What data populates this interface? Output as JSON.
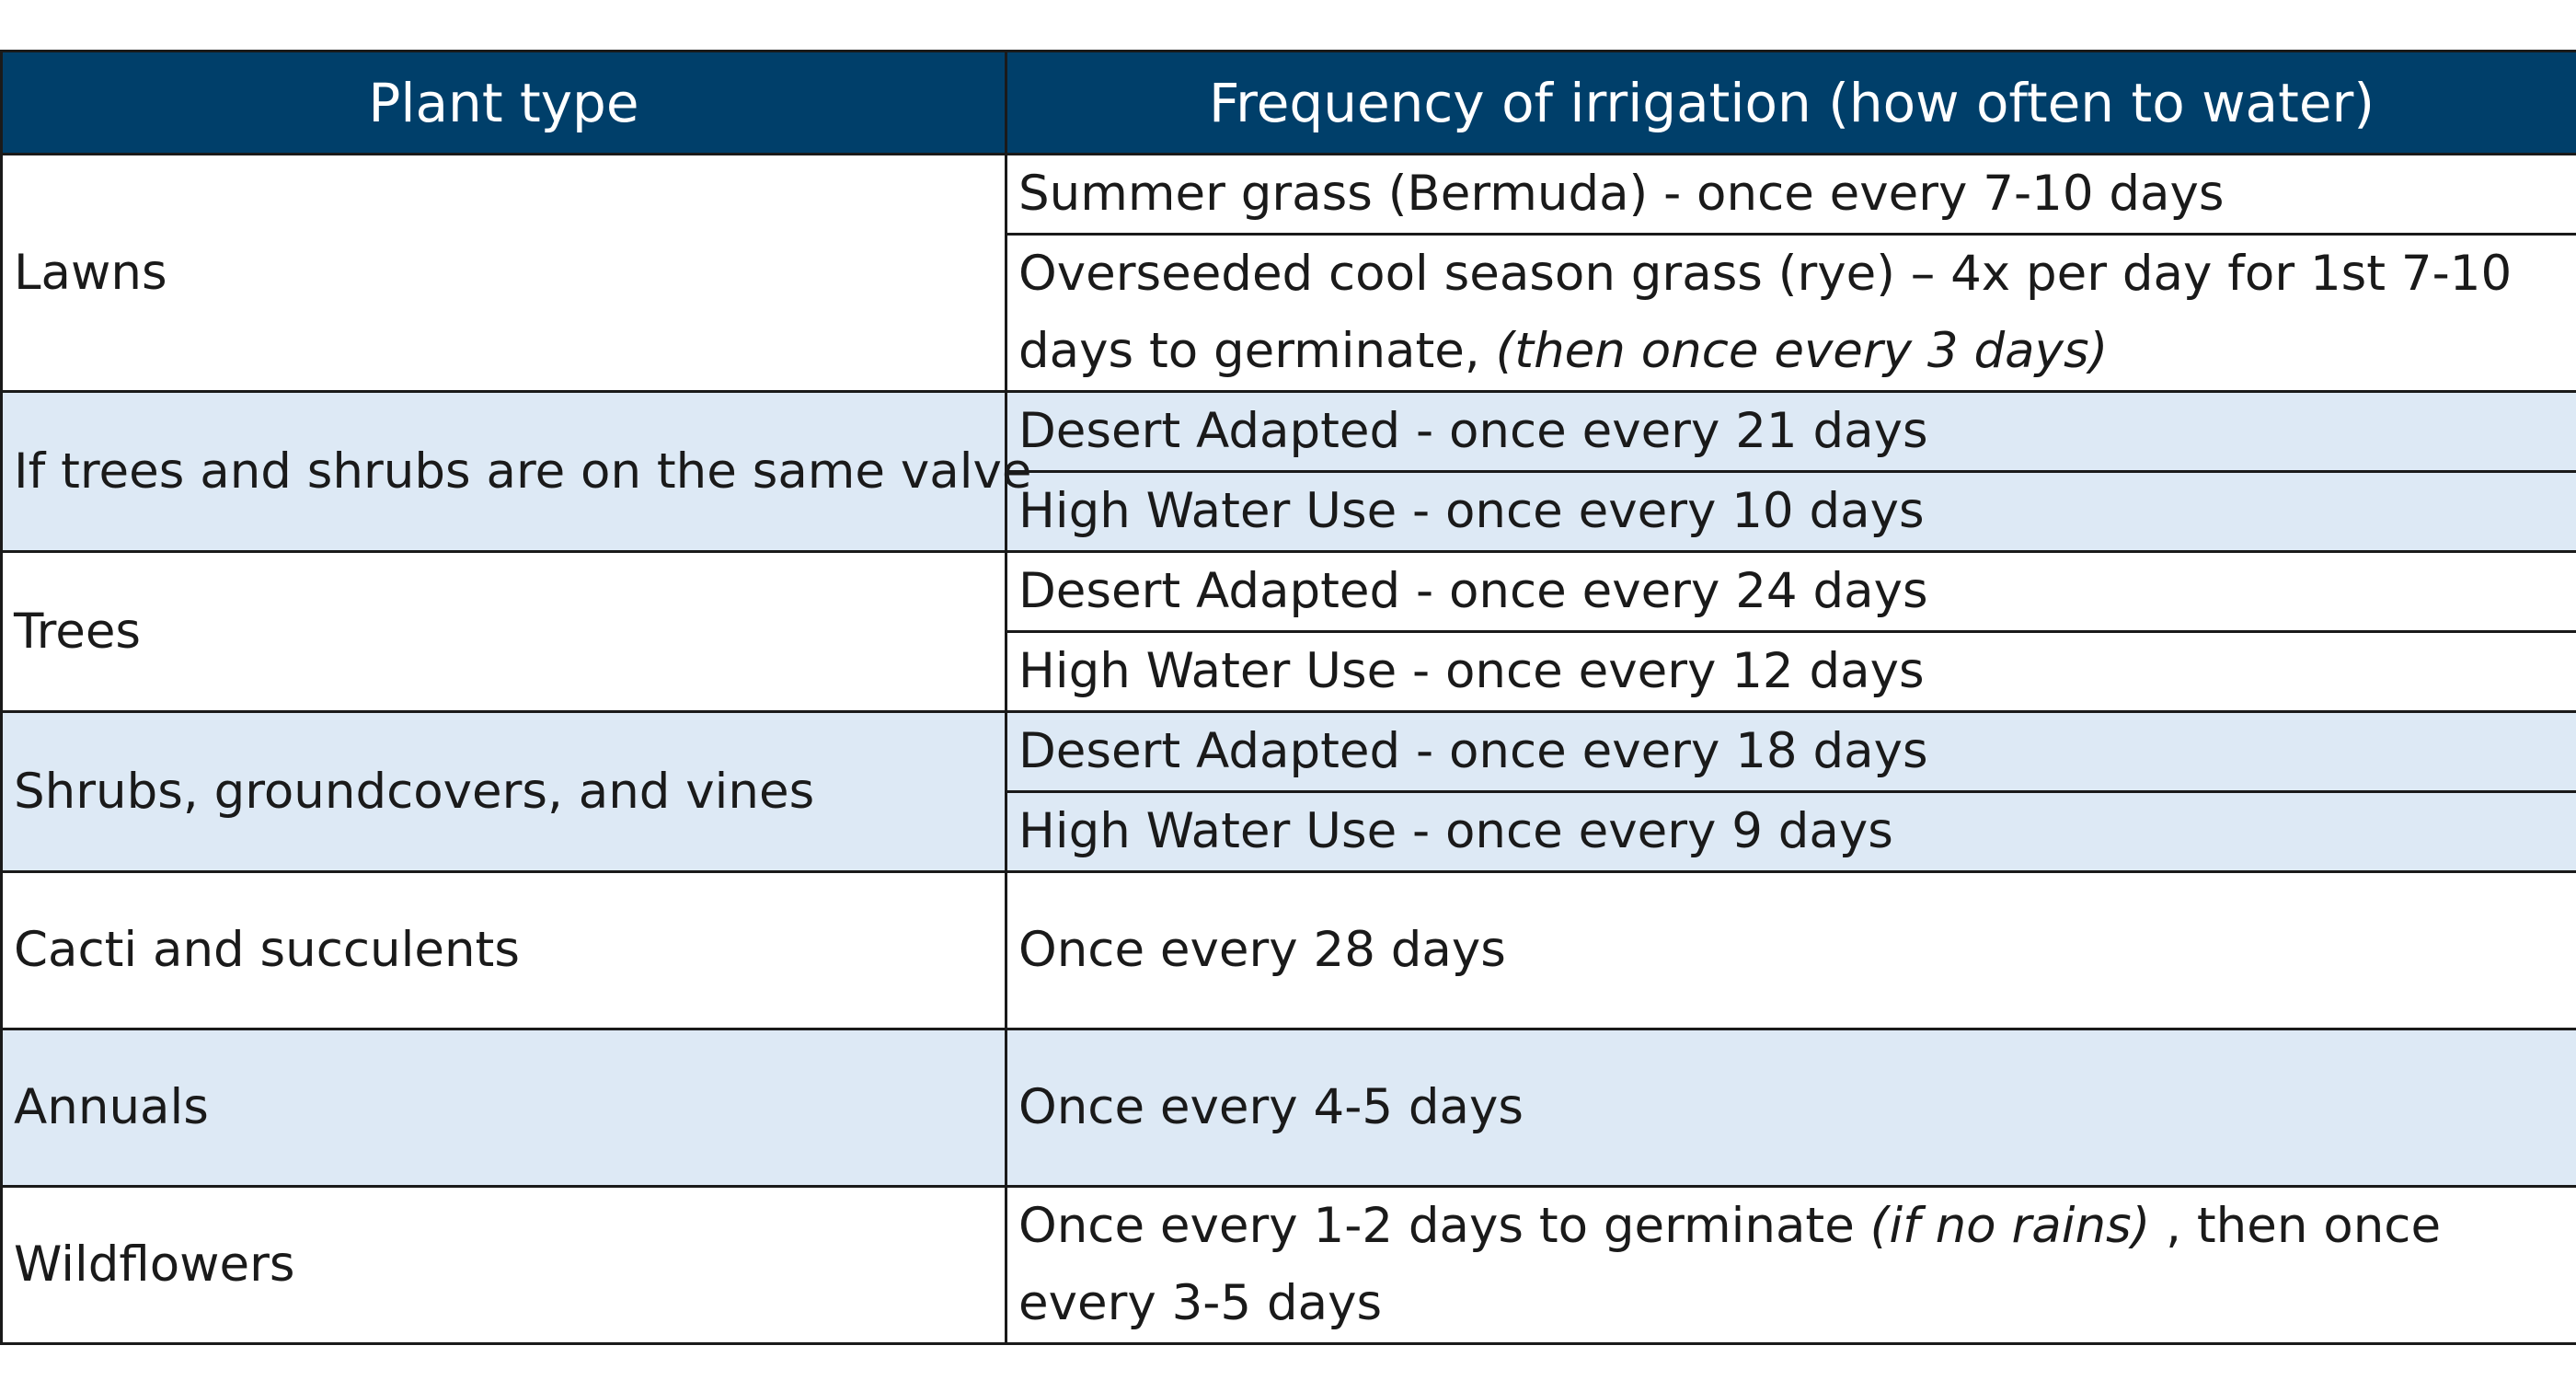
{
  "table": {
    "headers": {
      "plant_type": "Plant type",
      "frequency": "Frequency of irrigation (how often to water)"
    },
    "colors": {
      "header_bg": "#003f6a",
      "header_text": "#ffffff",
      "shaded_row": "#dde9f5",
      "border": "#1a1a1a"
    },
    "rows": {
      "lawns": {
        "plant": "Lawns",
        "f1": "Summer grass (Bermuda) - once every 7-10 days",
        "f2_main": "Overseeded cool season grass (rye) – 4x per day for 1st 7-10 days to germinate, ",
        "f2_italic": "(then once every 3 days)"
      },
      "trees_shrubs_same_valve": {
        "plant": "If trees and shrubs are on the same valve",
        "f1": "Desert Adapted - once every 21 days",
        "f2": "High Water Use - once every 10 days"
      },
      "trees": {
        "plant": "Trees",
        "f1": "Desert Adapted - once every 24 days",
        "f2": "High Water Use - once every 12 days"
      },
      "shrubs": {
        "plant": "Shrubs, groundcovers, and vines",
        "f1": "Desert Adapted - once every 18 days",
        "f2": "High Water Use - once every 9 days"
      },
      "cacti": {
        "plant": "Cacti and succulents",
        "f1": "Once every 28 days"
      },
      "annuals": {
        "plant": "Annuals",
        "f1": "Once every 4-5 days"
      },
      "wildflowers": {
        "plant": "Wildflowers",
        "f1_main": "Once every 1-2 days to germinate ",
        "f1_italic": "(if no rains)",
        "f1_tail": " , then once every 3-5 days"
      }
    }
  }
}
